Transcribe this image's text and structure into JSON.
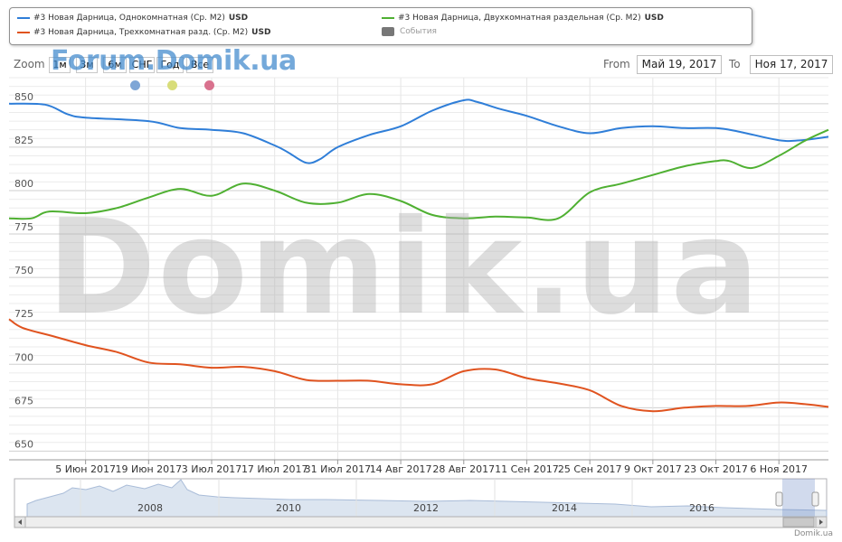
{
  "legend": {
    "items": [
      {
        "label": "#3 Новая Дарница, Однокомнатная (Ср. М2)",
        "unit": "USD",
        "color": "#2f7ed8"
      },
      {
        "label": "#3 Новая Дарница, Трехкомнатная разд. (Ср. М2)",
        "unit": "USD",
        "color": "#e0531f"
      },
      {
        "label": "#3 Новая Дарница, Двухкомнатная раздельная (Ср. М2)",
        "unit": "USD",
        "color": "#4fb032"
      },
      {
        "label": "События",
        "unit": "",
        "color": "#777777"
      }
    ]
  },
  "range_selector": {
    "zoom_label": "Zoom",
    "buttons": [
      "1м",
      "3м",
      "6м",
      "СНГ",
      "Год",
      "Все"
    ],
    "from_label": "From",
    "from_value": "Май 19, 2017",
    "to_label": "To",
    "to_value": "Ноя 17, 2017"
  },
  "watermarks": {
    "forum": "Forum.Domik.ua",
    "big": "Domik.ua"
  },
  "event_marker_colors": [
    "#7ea6d6",
    "#d8dd7a",
    "#d9728e"
  ],
  "credits": "Domik.ua",
  "navigator": {
    "year_labels": [
      "2008",
      "2010",
      "2012",
      "2014",
      "2016"
    ]
  },
  "chart_data": {
    "type": "line",
    "ylim": [
      645,
      865
    ],
    "yticks": [
      650,
      675,
      700,
      725,
      750,
      775,
      800,
      825,
      850
    ],
    "xlim": [
      "2017-05-19",
      "2017-11-17"
    ],
    "xticks": [
      {
        "date": "2017-06-05",
        "label": "5 Июн 2017"
      },
      {
        "date": "2017-06-19",
        "label": "19 Июн 2017"
      },
      {
        "date": "2017-07-03",
        "label": "3 Июл 2017"
      },
      {
        "date": "2017-07-17",
        "label": "17 Июл 2017"
      },
      {
        "date": "2017-07-31",
        "label": "31 Июл 2017"
      },
      {
        "date": "2017-08-14",
        "label": "14 Авг 2017"
      },
      {
        "date": "2017-08-28",
        "label": "28 Авг 2017"
      },
      {
        "date": "2017-09-11",
        "label": "11 Сен 2017"
      },
      {
        "date": "2017-09-25",
        "label": "25 Сен 2017"
      },
      {
        "date": "2017-10-09",
        "label": "9 Окт 2017"
      },
      {
        "date": "2017-10-23",
        "label": "23 Окт 2017"
      },
      {
        "date": "2017-11-06",
        "label": "6 Ноя 2017"
      }
    ],
    "series": [
      {
        "name": "#3 Новая Дарница, Однокомнатная (Ср. М2)",
        "color": "#2f7ed8",
        "points": [
          [
            "2017-05-19",
            850
          ],
          [
            "2017-05-27",
            849.5
          ],
          [
            "2017-06-01",
            844
          ],
          [
            "2017-06-05",
            842
          ],
          [
            "2017-06-19",
            840
          ],
          [
            "2017-06-26",
            836
          ],
          [
            "2017-07-03",
            835
          ],
          [
            "2017-07-10",
            833
          ],
          [
            "2017-07-17",
            826
          ],
          [
            "2017-07-20",
            822
          ],
          [
            "2017-07-24",
            816
          ],
          [
            "2017-07-27",
            818
          ],
          [
            "2017-07-31",
            825
          ],
          [
            "2017-08-07",
            832
          ],
          [
            "2017-08-14",
            837
          ],
          [
            "2017-08-21",
            846
          ],
          [
            "2017-08-28",
            852
          ],
          [
            "2017-08-31",
            851
          ],
          [
            "2017-09-05",
            847
          ],
          [
            "2017-09-11",
            843
          ],
          [
            "2017-09-18",
            837
          ],
          [
            "2017-09-25",
            833
          ],
          [
            "2017-10-02",
            836
          ],
          [
            "2017-10-09",
            837
          ],
          [
            "2017-10-16",
            836
          ],
          [
            "2017-10-23",
            836
          ],
          [
            "2017-10-28",
            834
          ],
          [
            "2017-11-06",
            829
          ],
          [
            "2017-11-11",
            829
          ],
          [
            "2017-11-17",
            831
          ]
        ]
      },
      {
        "name": "#3 Новая Дарница, Двухкомнатная раздельная (Ср. М2)",
        "color": "#4fb032",
        "points": [
          [
            "2017-05-19",
            784
          ],
          [
            "2017-05-24",
            784
          ],
          [
            "2017-05-28",
            788
          ],
          [
            "2017-06-05",
            787
          ],
          [
            "2017-06-12",
            790
          ],
          [
            "2017-06-19",
            796
          ],
          [
            "2017-06-26",
            801
          ],
          [
            "2017-07-03",
            797
          ],
          [
            "2017-07-10",
            804
          ],
          [
            "2017-07-17",
            800
          ],
          [
            "2017-07-24",
            793
          ],
          [
            "2017-07-31",
            793
          ],
          [
            "2017-08-07",
            798
          ],
          [
            "2017-08-14",
            794
          ],
          [
            "2017-08-21",
            786
          ],
          [
            "2017-08-28",
            784
          ],
          [
            "2017-09-04",
            785
          ],
          [
            "2017-09-11",
            784.5
          ],
          [
            "2017-09-18",
            784
          ],
          [
            "2017-09-25",
            799
          ],
          [
            "2017-10-02",
            804
          ],
          [
            "2017-10-09",
            809
          ],
          [
            "2017-10-16",
            814
          ],
          [
            "2017-10-23",
            817
          ],
          [
            "2017-10-26",
            817
          ],
          [
            "2017-10-31",
            813
          ],
          [
            "2017-11-06",
            820
          ],
          [
            "2017-11-12",
            829
          ],
          [
            "2017-11-17",
            835
          ]
        ]
      },
      {
        "name": "#3 Новая Дарница, Трехкомнатная разд. (Ср. М2)",
        "color": "#e0531f",
        "points": [
          [
            "2017-05-19",
            726
          ],
          [
            "2017-05-22",
            721
          ],
          [
            "2017-05-29",
            716
          ],
          [
            "2017-06-05",
            711
          ],
          [
            "2017-06-12",
            707
          ],
          [
            "2017-06-19",
            701
          ],
          [
            "2017-06-26",
            700
          ],
          [
            "2017-07-03",
            698
          ],
          [
            "2017-07-10",
            698.5
          ],
          [
            "2017-07-17",
            696
          ],
          [
            "2017-07-24",
            691
          ],
          [
            "2017-07-31",
            690.5
          ],
          [
            "2017-08-07",
            690.5
          ],
          [
            "2017-08-14",
            688.5
          ],
          [
            "2017-08-21",
            688.5
          ],
          [
            "2017-08-28",
            696
          ],
          [
            "2017-09-04",
            697
          ],
          [
            "2017-09-11",
            692
          ],
          [
            "2017-09-18",
            689
          ],
          [
            "2017-09-25",
            685
          ],
          [
            "2017-10-02",
            676
          ],
          [
            "2017-10-09",
            673
          ],
          [
            "2017-10-16",
            675
          ],
          [
            "2017-10-23",
            676
          ],
          [
            "2017-10-30",
            676
          ],
          [
            "2017-11-06",
            678
          ],
          [
            "2017-11-12",
            677
          ],
          [
            "2017-11-17",
            675.5
          ]
        ]
      }
    ],
    "grid": true,
    "legend_position": "top"
  }
}
